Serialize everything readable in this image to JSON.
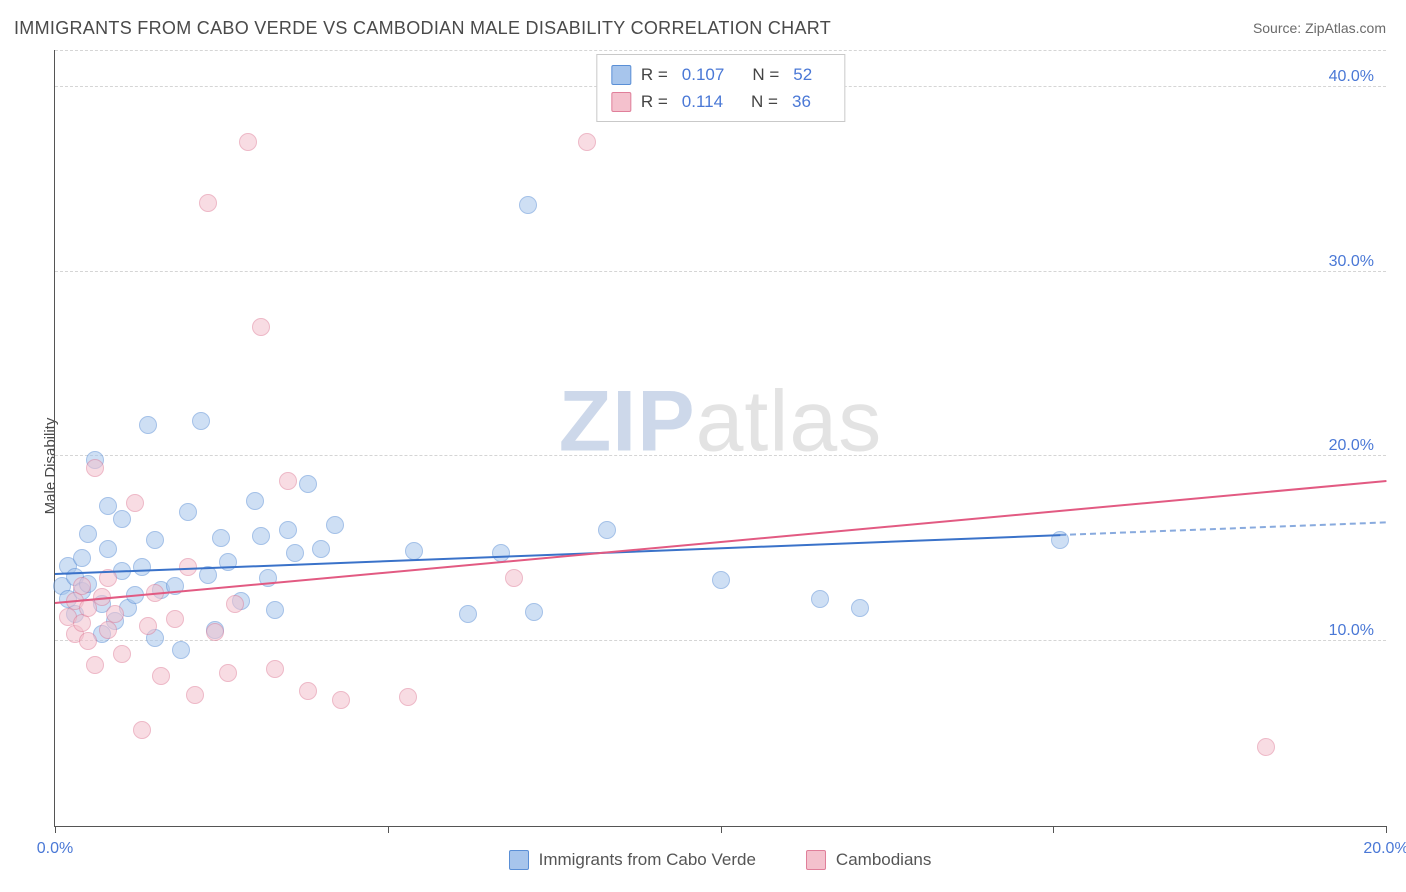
{
  "title": "IMMIGRANTS FROM CABO VERDE VS CAMBODIAN MALE DISABILITY CORRELATION CHART",
  "source": "Source: ZipAtlas.com",
  "ylabel": "Male Disability",
  "watermark": {
    "part1": "ZIP",
    "part2": "atlas"
  },
  "chart": {
    "type": "scatter",
    "xlim": [
      0,
      20
    ],
    "ylim": [
      0,
      42
    ],
    "xticks": [
      0,
      5,
      10,
      15,
      20
    ],
    "xtick_labels": [
      "0.0%",
      "",
      "",
      "",
      "20.0%"
    ],
    "yticks": [
      10,
      20,
      30,
      40
    ],
    "ytick_labels": [
      "10.0%",
      "20.0%",
      "30.0%",
      "40.0%"
    ],
    "grid_color": "#d5d5d5",
    "background": "#ffffff",
    "marker_radius": 9,
    "marker_opacity": 0.55,
    "series": [
      {
        "id": "cabo_verde",
        "label": "Immigrants from Cabo Verde",
        "color_fill": "#a7c5ec",
        "color_stroke": "#5a8fd6",
        "r": "0.107",
        "n": "52",
        "trend": {
          "x1": 0,
          "y1": 13.6,
          "x2": 15.1,
          "y2": 15.7,
          "extend_to": 20,
          "color": "#3a72c9"
        },
        "points": [
          [
            0.1,
            13.0
          ],
          [
            0.2,
            12.3
          ],
          [
            0.2,
            14.1
          ],
          [
            0.3,
            13.5
          ],
          [
            0.3,
            11.5
          ],
          [
            0.4,
            12.7
          ],
          [
            0.4,
            14.5
          ],
          [
            0.5,
            15.8
          ],
          [
            0.5,
            13.1
          ],
          [
            0.6,
            19.8
          ],
          [
            0.7,
            12.0
          ],
          [
            0.7,
            10.4
          ],
          [
            0.8,
            17.3
          ],
          [
            0.8,
            15.0
          ],
          [
            0.9,
            11.1
          ],
          [
            1.0,
            13.8
          ],
          [
            1.0,
            16.6
          ],
          [
            1.1,
            11.8
          ],
          [
            1.2,
            12.5
          ],
          [
            1.3,
            14.0
          ],
          [
            1.4,
            21.7
          ],
          [
            1.5,
            10.2
          ],
          [
            1.5,
            15.5
          ],
          [
            1.6,
            12.8
          ],
          [
            1.8,
            13.0
          ],
          [
            1.9,
            9.5
          ],
          [
            2.0,
            17.0
          ],
          [
            2.2,
            21.9
          ],
          [
            2.3,
            13.6
          ],
          [
            2.4,
            10.6
          ],
          [
            2.5,
            15.6
          ],
          [
            2.6,
            14.3
          ],
          [
            2.8,
            12.2
          ],
          [
            3.0,
            17.6
          ],
          [
            3.1,
            15.7
          ],
          [
            3.2,
            13.4
          ],
          [
            3.3,
            11.7
          ],
          [
            3.5,
            16.0
          ],
          [
            3.6,
            14.8
          ],
          [
            3.8,
            18.5
          ],
          [
            4.0,
            15.0
          ],
          [
            4.2,
            16.3
          ],
          [
            5.4,
            14.9
          ],
          [
            6.2,
            11.5
          ],
          [
            6.7,
            14.8
          ],
          [
            7.1,
            33.6
          ],
          [
            7.2,
            11.6
          ],
          [
            8.3,
            16.0
          ],
          [
            10.0,
            13.3
          ],
          [
            11.5,
            12.3
          ],
          [
            12.1,
            11.8
          ],
          [
            15.1,
            15.5
          ]
        ]
      },
      {
        "id": "cambodians",
        "label": "Cambodians",
        "color_fill": "#f4c1cd",
        "color_stroke": "#e07f9a",
        "r": "0.114",
        "n": "36",
        "trend": {
          "x1": 0,
          "y1": 12.0,
          "x2": 20,
          "y2": 18.6,
          "extend_to": 20,
          "color": "#e25a82"
        },
        "points": [
          [
            0.2,
            11.3
          ],
          [
            0.3,
            10.4
          ],
          [
            0.3,
            12.2
          ],
          [
            0.4,
            11.0
          ],
          [
            0.4,
            13.0
          ],
          [
            0.5,
            10.0
          ],
          [
            0.5,
            11.8
          ],
          [
            0.6,
            19.4
          ],
          [
            0.6,
            8.7
          ],
          [
            0.7,
            12.4
          ],
          [
            0.8,
            10.6
          ],
          [
            0.8,
            13.4
          ],
          [
            0.9,
            11.5
          ],
          [
            1.0,
            9.3
          ],
          [
            1.2,
            17.5
          ],
          [
            1.3,
            5.2
          ],
          [
            1.4,
            10.8
          ],
          [
            1.5,
            12.6
          ],
          [
            1.6,
            8.1
          ],
          [
            1.8,
            11.2
          ],
          [
            2.0,
            14.0
          ],
          [
            2.1,
            7.1
          ],
          [
            2.3,
            33.7
          ],
          [
            2.4,
            10.5
          ],
          [
            2.6,
            8.3
          ],
          [
            2.7,
            12.0
          ],
          [
            2.9,
            37.0
          ],
          [
            3.1,
            27.0
          ],
          [
            3.3,
            8.5
          ],
          [
            3.5,
            18.7
          ],
          [
            3.8,
            7.3
          ],
          [
            4.3,
            6.8
          ],
          [
            5.3,
            7.0
          ],
          [
            6.9,
            13.4
          ],
          [
            8.0,
            37.0
          ],
          [
            18.2,
            4.3
          ]
        ]
      }
    ],
    "legend_top": {
      "r_label": "R =",
      "n_label": "N ="
    }
  }
}
